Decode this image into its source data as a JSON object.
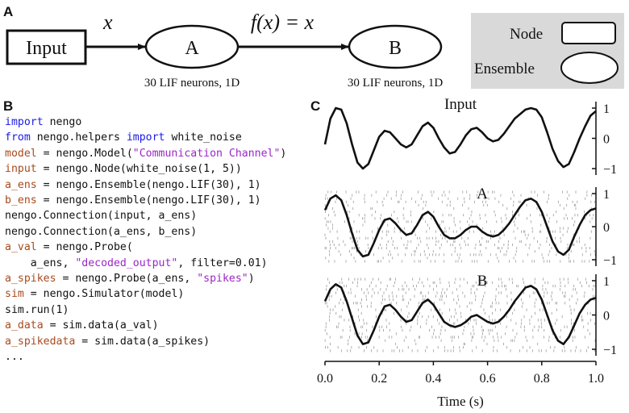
{
  "panels": {
    "A": {
      "label": "A",
      "input_node": "Input",
      "edge1_label": "x",
      "edge2_label": "f(x) = x",
      "ensemble_a": {
        "name": "A",
        "caption": "30 LIF neurons, 1D"
      },
      "ensemble_b": {
        "name": "B",
        "caption": "30 LIF neurons, 1D"
      },
      "legend": {
        "node_label": "Node",
        "ensemble_label": "Ensemble"
      }
    },
    "B": {
      "label": "B",
      "code_lines": [
        [
          {
            "t": "import",
            "c": "kw"
          },
          {
            "t": " nengo",
            "c": ""
          }
        ],
        [
          {
            "t": "from",
            "c": "kw"
          },
          {
            "t": " nengo.helpers ",
            "c": ""
          },
          {
            "t": "import",
            "c": "kw"
          },
          {
            "t": " white_noise",
            "c": ""
          }
        ],
        [
          {
            "t": "model",
            "c": "var"
          },
          {
            "t": " = nengo.Model(",
            "c": ""
          },
          {
            "t": "\"Communication Channel\"",
            "c": "str"
          },
          {
            "t": ")",
            "c": ""
          }
        ],
        [
          {
            "t": "input",
            "c": "var"
          },
          {
            "t": " = nengo.Node(white_noise(1, 5))",
            "c": ""
          }
        ],
        [
          {
            "t": "a_ens",
            "c": "var"
          },
          {
            "t": " = nengo.Ensemble(nengo.LIF(30), 1)",
            "c": ""
          }
        ],
        [
          {
            "t": "b_ens",
            "c": "var"
          },
          {
            "t": " = nengo.Ensemble(nengo.LIF(30), 1)",
            "c": ""
          }
        ],
        [
          {
            "t": "nengo.Connection(input, a_ens)",
            "c": ""
          }
        ],
        [
          {
            "t": "nengo.Connection(a_ens, b_ens)",
            "c": ""
          }
        ],
        [
          {
            "t": "a_val",
            "c": "var"
          },
          {
            "t": " = nengo.Probe(",
            "c": ""
          }
        ],
        [
          {
            "t": "    a_ens, ",
            "c": ""
          },
          {
            "t": "\"decoded_output\"",
            "c": "str"
          },
          {
            "t": ", filter=0.01)",
            "c": ""
          }
        ],
        [
          {
            "t": "a_spikes",
            "c": "var"
          },
          {
            "t": " = nengo.Probe(a_ens, ",
            "c": ""
          },
          {
            "t": "\"spikes\"",
            "c": "str"
          },
          {
            "t": ")",
            "c": ""
          }
        ],
        [
          {
            "t": "sim",
            "c": "var"
          },
          {
            "t": " = nengo.Simulator(model)",
            "c": ""
          }
        ],
        [
          {
            "t": "sim.run(1)",
            "c": ""
          }
        ],
        [
          {
            "t": "a_data",
            "c": "var"
          },
          {
            "t": " = sim.data(a_val)",
            "c": ""
          }
        ],
        [
          {
            "t": "a_spikedata",
            "c": "var"
          },
          {
            "t": " = sim.data(a_spikes)",
            "c": ""
          }
        ],
        [
          {
            "t": "...",
            "c": ""
          }
        ]
      ],
      "colors": {
        "keyword": "#1a1ae6",
        "variable": "#a84a1e",
        "string": "#9b27c9"
      }
    },
    "C": {
      "label": "C",
      "xlabel": "Time (s)",
      "x_ticks": [
        "0.0",
        "0.2",
        "0.4",
        "0.6",
        "0.8",
        "1.0"
      ]
    }
  },
  "chart_data": [
    {
      "type": "line",
      "title": "Input",
      "xlim": [
        0,
        1
      ],
      "ylim": [
        -1,
        1
      ],
      "y_ticks": [
        "1",
        "0",
        "−1"
      ],
      "x": [
        0.0,
        0.02,
        0.04,
        0.06,
        0.08,
        0.1,
        0.12,
        0.14,
        0.16,
        0.18,
        0.2,
        0.22,
        0.24,
        0.26,
        0.28,
        0.3,
        0.32,
        0.34,
        0.36,
        0.38,
        0.4,
        0.42,
        0.44,
        0.46,
        0.48,
        0.5,
        0.52,
        0.54,
        0.56,
        0.58,
        0.6,
        0.62,
        0.64,
        0.66,
        0.68,
        0.7,
        0.72,
        0.74,
        0.76,
        0.78,
        0.8,
        0.82,
        0.84,
        0.86,
        0.88,
        0.9,
        0.92,
        0.94,
        0.96,
        0.98,
        1.0
      ],
      "y": [
        -0.2,
        0.65,
        1.0,
        0.95,
        0.5,
        -0.2,
        -0.8,
        -1.0,
        -0.85,
        -0.4,
        0.05,
        0.25,
        0.2,
        0.0,
        -0.2,
        -0.3,
        -0.2,
        0.1,
        0.4,
        0.52,
        0.35,
        0.0,
        -0.3,
        -0.5,
        -0.45,
        -0.2,
        0.1,
        0.3,
        0.35,
        0.2,
        0.0,
        -0.1,
        -0.05,
        0.15,
        0.4,
        0.65,
        0.8,
        0.95,
        1.0,
        0.95,
        0.7,
        0.2,
        -0.35,
        -0.75,
        -0.95,
        -0.85,
        -0.45,
        0.0,
        0.4,
        0.75,
        0.9
      ]
    },
    {
      "type": "line",
      "title": "A",
      "xlim": [
        0,
        1
      ],
      "ylim": [
        -1,
        1
      ],
      "y_ticks": [
        "1",
        "0",
        "−1"
      ],
      "x": [
        0.0,
        0.02,
        0.04,
        0.06,
        0.08,
        0.1,
        0.12,
        0.14,
        0.16,
        0.18,
        0.2,
        0.22,
        0.24,
        0.26,
        0.28,
        0.3,
        0.32,
        0.34,
        0.36,
        0.38,
        0.4,
        0.42,
        0.44,
        0.46,
        0.48,
        0.5,
        0.52,
        0.54,
        0.56,
        0.58,
        0.6,
        0.62,
        0.64,
        0.66,
        0.68,
        0.7,
        0.72,
        0.74,
        0.76,
        0.78,
        0.8,
        0.82,
        0.84,
        0.86,
        0.88,
        0.9,
        0.92,
        0.94,
        0.96,
        0.98,
        1.0
      ],
      "y": [
        0.5,
        0.85,
        0.95,
        0.8,
        0.35,
        -0.2,
        -0.7,
        -0.9,
        -0.85,
        -0.5,
        -0.1,
        0.2,
        0.25,
        0.1,
        -0.1,
        -0.25,
        -0.2,
        0.05,
        0.35,
        0.45,
        0.3,
        0.0,
        -0.25,
        -0.35,
        -0.35,
        -0.25,
        -0.1,
        0.0,
        0.0,
        -0.15,
        -0.25,
        -0.3,
        -0.25,
        -0.1,
        0.1,
        0.35,
        0.6,
        0.8,
        0.85,
        0.75,
        0.45,
        0.0,
        -0.45,
        -0.75,
        -0.85,
        -0.7,
        -0.3,
        0.05,
        0.35,
        0.5,
        0.55
      ]
    },
    {
      "type": "line",
      "title": "B",
      "xlim": [
        0,
        1
      ],
      "ylim": [
        -1,
        1
      ],
      "y_ticks": [
        "1",
        "0",
        "−1"
      ],
      "x": [
        0.0,
        0.02,
        0.04,
        0.06,
        0.08,
        0.1,
        0.12,
        0.14,
        0.16,
        0.18,
        0.2,
        0.22,
        0.24,
        0.26,
        0.28,
        0.3,
        0.32,
        0.34,
        0.36,
        0.38,
        0.4,
        0.42,
        0.44,
        0.46,
        0.48,
        0.5,
        0.52,
        0.54,
        0.56,
        0.58,
        0.6,
        0.62,
        0.64,
        0.66,
        0.68,
        0.7,
        0.72,
        0.74,
        0.76,
        0.78,
        0.8,
        0.82,
        0.84,
        0.86,
        0.88,
        0.9,
        0.92,
        0.94,
        0.96,
        0.98,
        1.0
      ],
      "y": [
        0.4,
        0.75,
        0.9,
        0.8,
        0.4,
        -0.1,
        -0.6,
        -0.85,
        -0.8,
        -0.45,
        -0.05,
        0.25,
        0.3,
        0.15,
        -0.05,
        -0.2,
        -0.15,
        0.1,
        0.35,
        0.45,
        0.3,
        0.05,
        -0.2,
        -0.3,
        -0.35,
        -0.3,
        -0.2,
        -0.05,
        0.0,
        -0.1,
        -0.2,
        -0.25,
        -0.2,
        -0.05,
        0.15,
        0.4,
        0.6,
        0.8,
        0.85,
        0.75,
        0.45,
        0.0,
        -0.45,
        -0.75,
        -0.85,
        -0.65,
        -0.3,
        0.05,
        0.3,
        0.45,
        0.5
      ]
    }
  ]
}
